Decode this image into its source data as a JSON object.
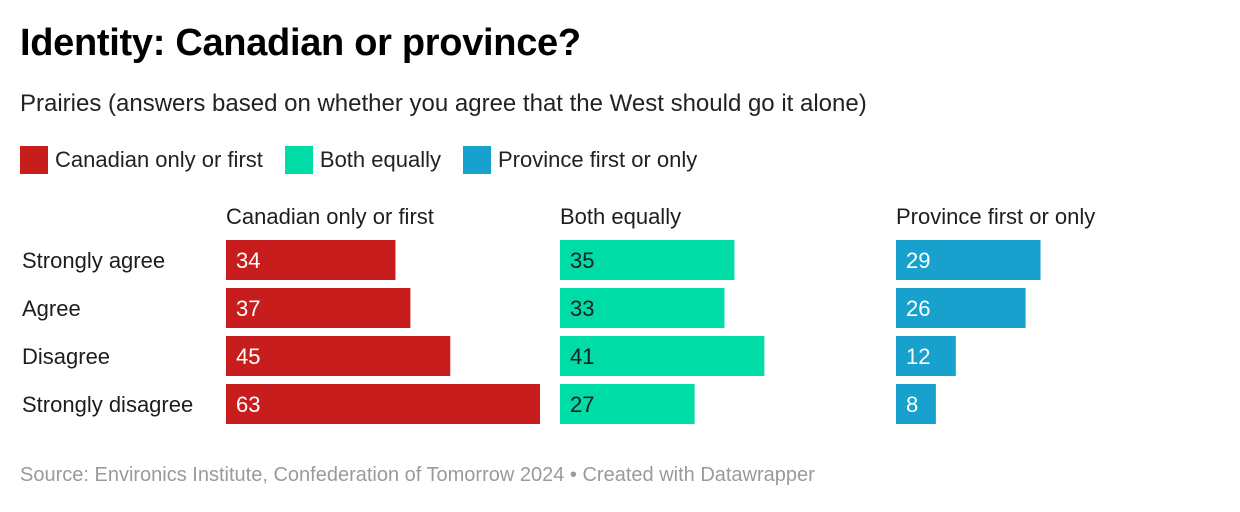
{
  "title": "Identity: Canadian or province?",
  "subtitle": "Prairies (answers based on whether you agree that the West should go it alone)",
  "source": "Source: Environics Institute, Confederation of Tomorrow 2024 • Created with Datawrapper",
  "colors": {
    "canadian": "#c71e1d",
    "both": "#00dca6",
    "province": "#18a1cd"
  },
  "legend": [
    {
      "label": "Canadian only or first",
      "color": "#c71e1d"
    },
    {
      "label": "Both equally",
      "color": "#00dca6"
    },
    {
      "label": "Province first or only",
      "color": "#18a1cd"
    }
  ],
  "chart_data": {
    "type": "bar",
    "categories": [
      "Strongly agree",
      "Agree",
      "Disagree",
      "Strongly disagree"
    ],
    "series": [
      {
        "name": "Canadian only or first",
        "values": [
          34,
          37,
          45,
          63
        ],
        "label_color": "#ffffff"
      },
      {
        "name": "Both equally",
        "values": [
          35,
          33,
          41,
          27
        ],
        "label_color": "#1d1d1d"
      },
      {
        "name": "Province first or only",
        "values": [
          29,
          26,
          12,
          8
        ],
        "label_color": "#ffffff"
      }
    ],
    "xlim": [
      0,
      63
    ],
    "legend_position": "top-left",
    "grid": false
  }
}
